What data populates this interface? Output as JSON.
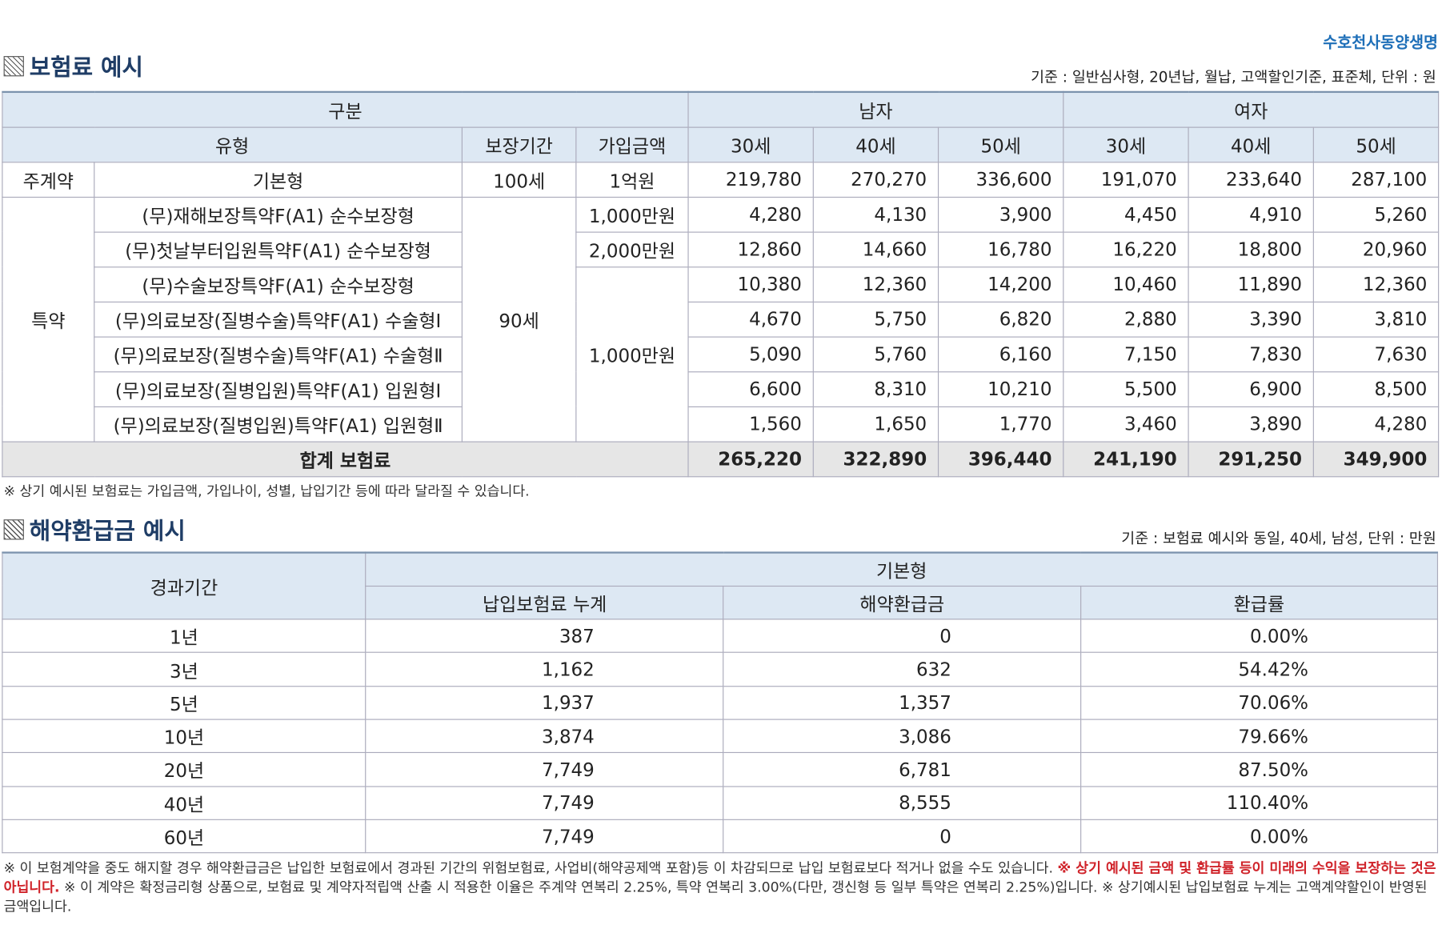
{
  "brand": "수호천사동양생명",
  "section1": {
    "title": "보험료 예시",
    "basis": "기준 : 일반심사형, 20년납, 월납, 고액할인기준, 표준체, 단위 : 원",
    "header": {
      "group": "구분",
      "male": "남자",
      "female": "여자",
      "type": "유형",
      "period": "보장기간",
      "amount": "가입금액",
      "ages": [
        "30세",
        "40세",
        "50세",
        "30세",
        "40세",
        "50세"
      ]
    },
    "main": {
      "category": "주계약",
      "type": "기본형",
      "period": "100세",
      "amount": "1억원",
      "values": [
        "219,780",
        "270,270",
        "336,600",
        "191,070",
        "233,640",
        "287,100"
      ]
    },
    "riders": {
      "category": "특약",
      "period": "90세",
      "rows": [
        {
          "type": "(무)재해보장특약F(A1) 순수보장형",
          "amount": "1,000만원",
          "values": [
            "4,280",
            "4,130",
            "3,900",
            "4,450",
            "4,910",
            "5,260"
          ]
        },
        {
          "type": "(무)첫날부터입원특약F(A1) 순수보장형",
          "amount": "2,000만원",
          "values": [
            "12,860",
            "14,660",
            "16,780",
            "16,220",
            "18,800",
            "20,960"
          ]
        },
        {
          "type": "(무)수술보장특약F(A1) 순수보장형",
          "amount": "1,000만원",
          "values": [
            "10,380",
            "12,360",
            "14,200",
            "10,460",
            "11,890",
            "12,360"
          ]
        },
        {
          "type": "(무)의료보장(질병수술)특약F(A1) 수술형Ⅰ",
          "values": [
            "4,670",
            "5,750",
            "6,820",
            "2,880",
            "3,390",
            "3,810"
          ]
        },
        {
          "type": "(무)의료보장(질병수술)특약F(A1) 수술형Ⅱ",
          "values": [
            "5,090",
            "5,760",
            "6,160",
            "7,150",
            "7,830",
            "7,630"
          ]
        },
        {
          "type": "(무)의료보장(질병입원)특약F(A1) 입원형Ⅰ",
          "values": [
            "6,600",
            "8,310",
            "10,210",
            "5,500",
            "6,900",
            "8,500"
          ]
        },
        {
          "type": "(무)의료보장(질병입원)특약F(A1) 입원형Ⅱ",
          "values": [
            "1,560",
            "1,650",
            "1,770",
            "3,460",
            "3,890",
            "4,280"
          ]
        }
      ]
    },
    "total": {
      "label": "합계 보험료",
      "values": [
        "265,220",
        "322,890",
        "396,440",
        "241,190",
        "291,250",
        "349,900"
      ]
    },
    "note": "※ 상기 예시된 보험료는 가입금액, 가입나이, 성별, 납입기간 등에 따라 달라질 수 있습니다."
  },
  "section2": {
    "title": "해약환급금 예시",
    "basis": "기준 : 보험료 예시와 동일, 40세, 남성, 단위 : 만원",
    "header": {
      "period": "경과기간",
      "plan": "기본형",
      "columns": [
        "납입보험료 누계",
        "해약환급금",
        "환급률"
      ]
    },
    "rows": [
      [
        "1년",
        "387",
        "0",
        "0.00%"
      ],
      [
        "3년",
        "1,162",
        "632",
        "54.42%"
      ],
      [
        "5년",
        "1,937",
        "1,357",
        "70.06%"
      ],
      [
        "10년",
        "3,874",
        "3,086",
        "79.66%"
      ],
      [
        "20년",
        "7,749",
        "6,781",
        "87.50%"
      ],
      [
        "40년",
        "7,749",
        "8,555",
        "110.40%"
      ],
      [
        "60년",
        "7,749",
        "0",
        "0.00%"
      ]
    ],
    "note": [
      "※ 이 보험계약을 중도 해지할 경우 해약환급금은 납입한 보험료에서 경과된 기간의 위험보험료, 사업비(해약공제액 포함)등 이 차감되므로 납입 보험료보다 적거나 없을 수도 있습니다. ",
      "※ 상기 예시된 금액 및 환급률 등이 미래의 수익을 보장하는 것은 아닙니다.",
      " ※ 이 계약은 확정금리형 상품으로, 보험료 및 계약자적립액 산출 시 적용한 이율은 주계약 연복리 2.25%, 특약 연복리 3.00%(다만, 갱신형 등 일부 특약은 연복리 2.25%)입니다. ※ 상기예시된 납입보험료 누계는 고액계약할인이 반영된 금액입니다."
    ]
  }
}
